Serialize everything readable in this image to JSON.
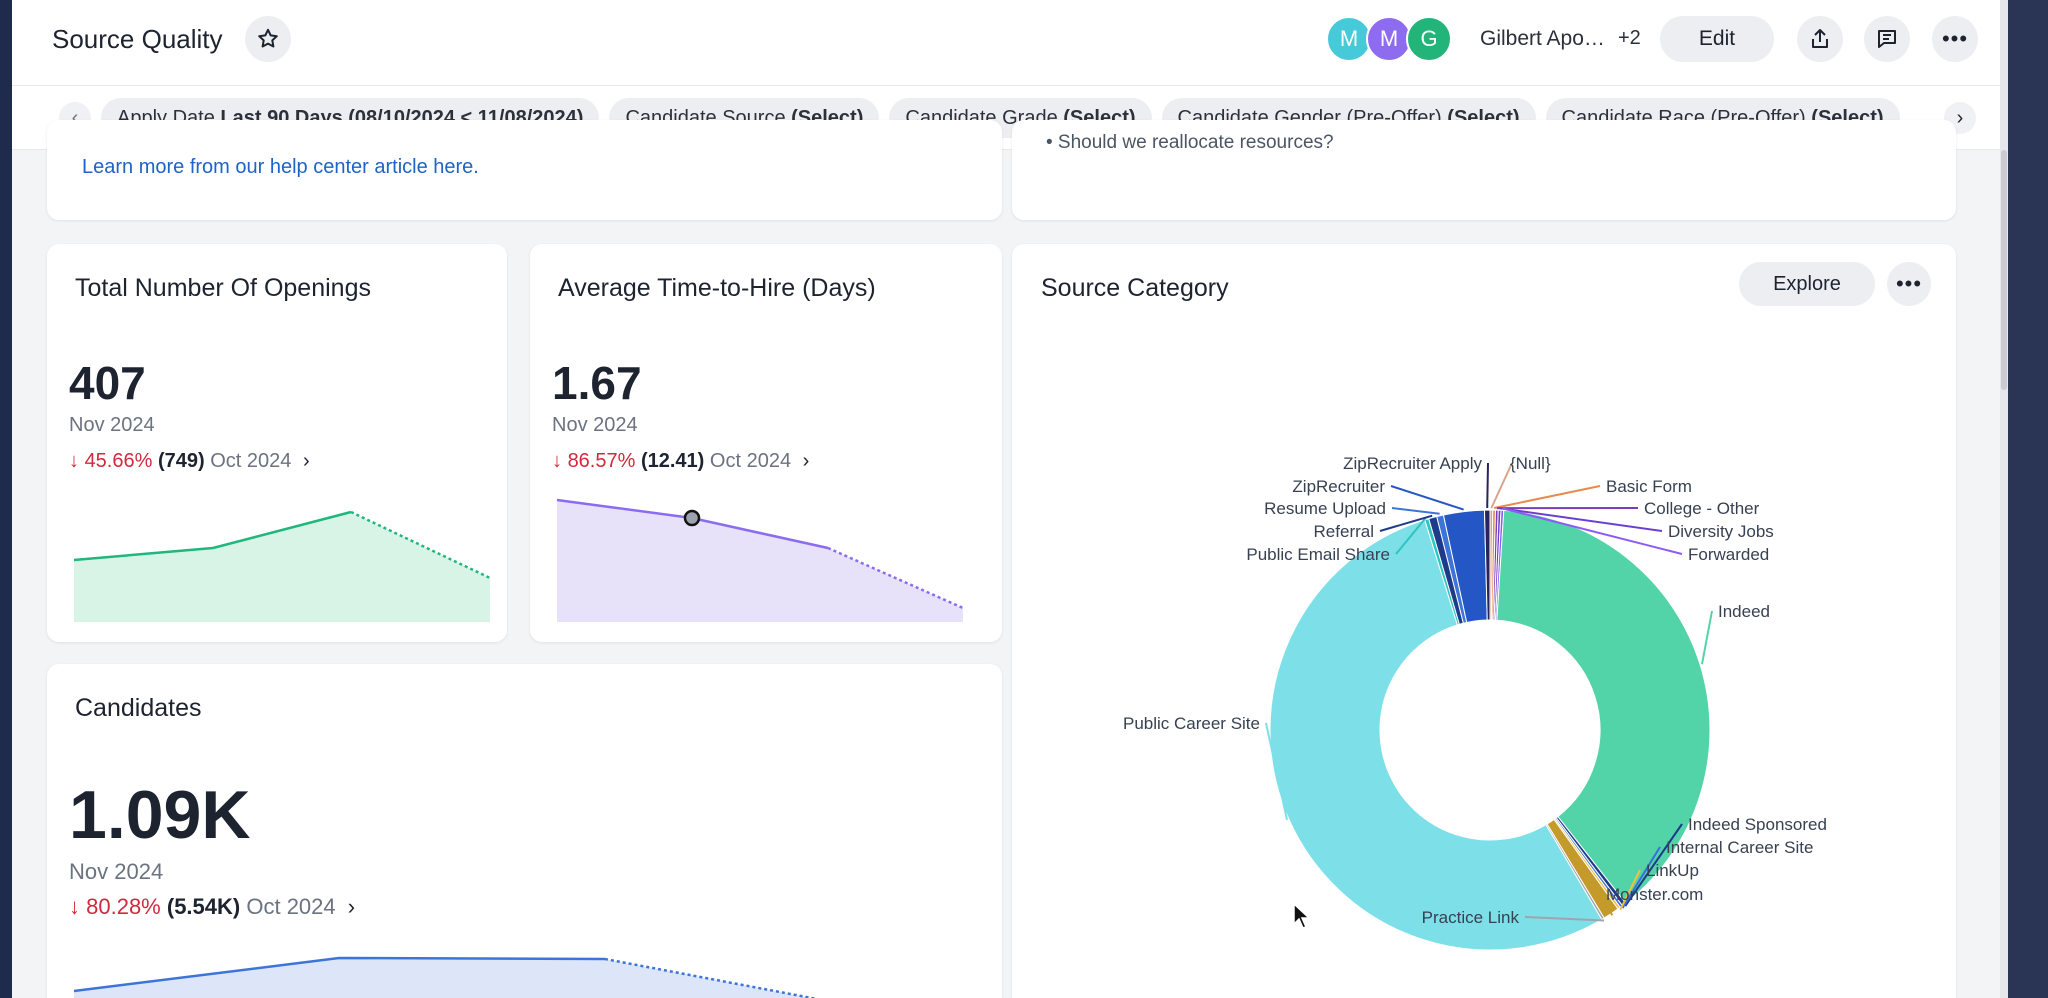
{
  "header": {
    "title": "Source Quality",
    "avatars": [
      "M",
      "M",
      "G"
    ],
    "owner": "Gilbert Apo…",
    "extra_count": "+2",
    "edit_label": "Edit"
  },
  "filters": [
    {
      "name": "Apply Date ",
      "value": "Last 90 Days (08/10/2024 < 11/08/2024)"
    },
    {
      "name": "Candidate Source ",
      "value": "(Select)"
    },
    {
      "name": "Candidate Grade ",
      "value": "(Select)"
    },
    {
      "name": "Candidate Gender (Pre-Offer) ",
      "value": "(Select)"
    },
    {
      "name": "Candidate Race (Pre-Offer) ",
      "value": "(Select)"
    }
  ],
  "top_cards": {
    "help_link": "Learn more from our help center article here.",
    "right_partial": "• Should we reallocate resources?"
  },
  "openings": {
    "title": "Total Number Of Openings",
    "value": "407",
    "date": "Nov 2024",
    "change": "45.66%",
    "prev": "(749)",
    "prev_date": "Oct 2024",
    "trend": [
      0.45,
      0.55,
      0.85,
      0.3
    ]
  },
  "time_to_hire": {
    "title": "Average Time-to-Hire (Days)",
    "value": "1.67",
    "date": "Nov 2024",
    "change": "86.57%",
    "prev": "(12.41)",
    "prev_date": "Oct 2024",
    "trend": [
      0.95,
      0.8,
      0.55,
      0.05
    ]
  },
  "candidates": {
    "title": "Candidates",
    "value": "1.09K",
    "date": "Nov 2024",
    "change": "80.28%",
    "prev": "(5.54K)",
    "prev_date": "Oct 2024",
    "trend": [
      0.3,
      0.85,
      0.83,
      0.0
    ]
  },
  "source_category": {
    "title": "Source Category",
    "explore_label": "Explore"
  },
  "chart_data": {
    "type": "pie",
    "title": "Source Category",
    "labels": [
      "{Null}",
      "Basic Form",
      "College - Other",
      "Diversity Jobs",
      "Forwarded",
      "Indeed",
      "Indeed Sponsored",
      "Internal Career Site",
      "LinkUp",
      "Monster.com",
      "Practice Link",
      "Public Career Site",
      "Public Email Share",
      "Referral",
      "Resume Upload",
      "ZipRecruiter",
      "ZipRecruiter Apply"
    ],
    "values": [
      0.2,
      0.2,
      0.2,
      0.2,
      0.2,
      38.5,
      0.3,
      0.2,
      0.2,
      1.2,
      0.2,
      53.8,
      0.3,
      0.6,
      0.5,
      3.0,
      0.4
    ],
    "colors": [
      "#d9a588",
      "#e8894e",
      "#7a3fb8",
      "#6a3fd1",
      "#8b5cf6",
      "#52d3a8",
      "#1e3a8a",
      "#3b6fd6",
      "#f0c040",
      "#c49a2a",
      "#a0a4ad",
      "#7ddfe8",
      "#2ec4c4",
      "#1e3a8a",
      "#3c75d6",
      "#2457c5",
      "#28235e"
    ]
  },
  "colors": {
    "accent": "#1e63c7",
    "negative": "#d1293d",
    "green": "#1fb77c",
    "purple": "#8b6cf0",
    "blue": "#3d74d9"
  }
}
